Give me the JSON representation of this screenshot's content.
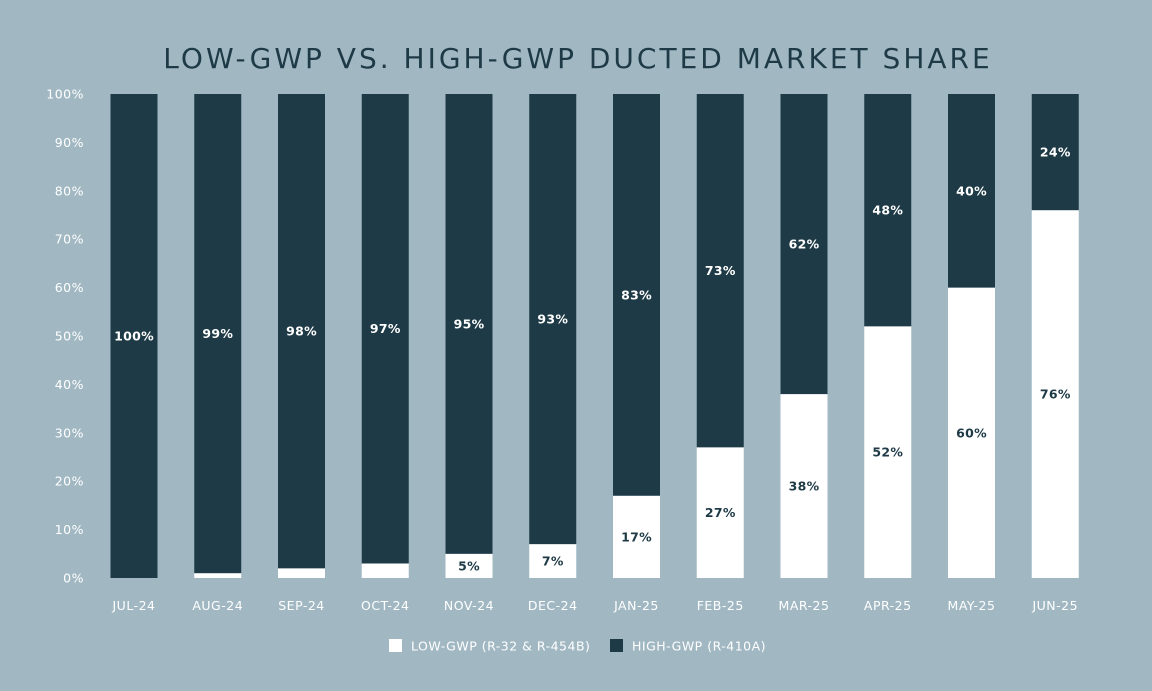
{
  "colors": {
    "background": "#a1b8c3",
    "high_gwp": "#1e3a46",
    "low_gwp": "#ffffff",
    "text": "#1e3a46",
    "axis_text": "#ffffff"
  },
  "chart_data": {
    "type": "bar",
    "stacked": true,
    "title": "LOW-GWP VS. HIGH-GWP DUCTED MARKET SHARE",
    "xlabel": "",
    "ylabel": "",
    "ylim": [
      0,
      100
    ],
    "y_ticks": [
      "0%",
      "10%",
      "20%",
      "30%",
      "40%",
      "50%",
      "60%",
      "70%",
      "80%",
      "90%",
      "100%"
    ],
    "grid": false,
    "legend_position": "bottom-center",
    "categories": [
      "JUL-24",
      "AUG-24",
      "SEP-24",
      "OCT-24",
      "NOV-24",
      "DEC-24",
      "JAN-25",
      "FEB-25",
      "MAR-25",
      "APR-25",
      "MAY-25",
      "JUN-25"
    ],
    "series": [
      {
        "name": "LOW-GWP (R-32 & R-454B)",
        "color": "#ffffff",
        "values": [
          0,
          1,
          2,
          3,
          5,
          7,
          17,
          27,
          38,
          52,
          60,
          76
        ],
        "labels": [
          "",
          "",
          "",
          "",
          "5%",
          "7%",
          "17%",
          "27%",
          "38%",
          "52%",
          "60%",
          "76%"
        ]
      },
      {
        "name": "HIGH-GWP (R-410A)",
        "color": "#1e3a46",
        "values": [
          100,
          99,
          98,
          97,
          95,
          93,
          83,
          73,
          62,
          48,
          40,
          24
        ],
        "labels": [
          "100%",
          "99%",
          "98%",
          "97%",
          "95%",
          "93%",
          "83%",
          "73%",
          "62%",
          "48%",
          "40%",
          "24%"
        ]
      }
    ]
  }
}
